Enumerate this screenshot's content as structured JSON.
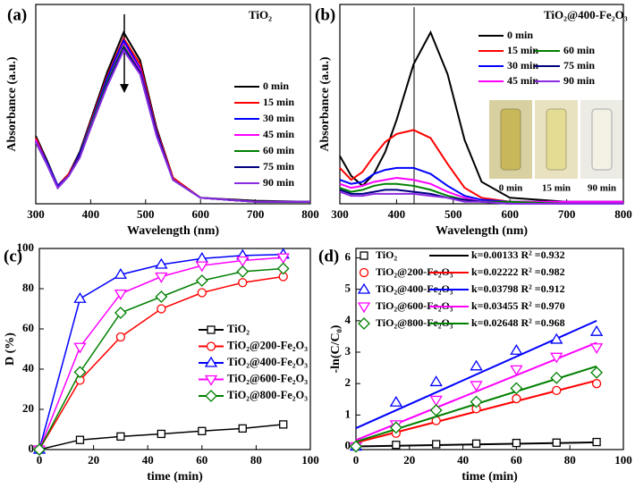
{
  "chart_data": [
    {
      "type": "line",
      "panel_label": "(a)",
      "annotation": "TiO₂",
      "x_label": "Wavelength (nm)",
      "y_label": "Absorbance (a.u.)",
      "x": [
        300,
        320,
        340,
        360,
        380,
        400,
        430,
        460,
        490,
        520,
        550,
        600,
        700,
        800
      ],
      "xlim": [
        300,
        800
      ],
      "xticks": [
        300,
        400,
        500,
        600,
        700,
        800
      ],
      "ylim": [
        0,
        1
      ],
      "series": [
        {
          "name": "0 min",
          "color": "#000000",
          "values": [
            0.34,
            0.22,
            0.09,
            0.15,
            0.26,
            0.42,
            0.66,
            0.86,
            0.72,
            0.38,
            0.13,
            0.03,
            0.015,
            0.01
          ]
        },
        {
          "name": "15 min",
          "color": "#ff0000",
          "values": [
            0.33,
            0.21,
            0.09,
            0.15,
            0.25,
            0.41,
            0.64,
            0.83,
            0.7,
            0.37,
            0.13,
            0.03,
            0.01,
            0.01
          ]
        },
        {
          "name": "30 min",
          "color": "#0000ff",
          "values": [
            0.32,
            0.21,
            0.09,
            0.14,
            0.25,
            0.4,
            0.63,
            0.82,
            0.68,
            0.36,
            0.12,
            0.03,
            0.01,
            0.01
          ]
        },
        {
          "name": "45 min",
          "color": "#ff00ff",
          "values": [
            0.32,
            0.2,
            0.08,
            0.14,
            0.24,
            0.39,
            0.61,
            0.8,
            0.67,
            0.35,
            0.12,
            0.03,
            0.01,
            0.01
          ]
        },
        {
          "name": "60 min",
          "color": "#008000",
          "values": [
            0.31,
            0.2,
            0.08,
            0.14,
            0.24,
            0.39,
            0.61,
            0.79,
            0.66,
            0.35,
            0.12,
            0.03,
            0.01,
            0.01
          ]
        },
        {
          "name": "75 min",
          "color": "#000080",
          "values": [
            0.31,
            0.2,
            0.08,
            0.14,
            0.24,
            0.38,
            0.6,
            0.78,
            0.66,
            0.35,
            0.12,
            0.03,
            0.01,
            0.01
          ]
        },
        {
          "name": "90 min",
          "color": "#8a2be2",
          "values": [
            0.31,
            0.2,
            0.08,
            0.14,
            0.23,
            0.38,
            0.59,
            0.77,
            0.65,
            0.34,
            0.12,
            0.03,
            0.01,
            0.01
          ]
        }
      ]
    },
    {
      "type": "line",
      "panel_label": "(b)",
      "annotation": "TiO₂@400-Fe₂O₃",
      "x_label": "Wavelength (nm)",
      "y_label": "Absorbance (a.u.)",
      "photo_labels": [
        "0 min",
        "15 min",
        "90 min"
      ],
      "x": [
        300,
        320,
        340,
        360,
        380,
        400,
        430,
        460,
        490,
        520,
        550,
        600,
        700,
        800
      ],
      "xlim": [
        300,
        800
      ],
      "xticks": [
        300,
        400,
        500,
        600,
        700,
        800
      ],
      "ylim": [
        0,
        1
      ],
      "series": [
        {
          "name": "0 min",
          "color": "#000000",
          "values": [
            0.24,
            0.14,
            0.09,
            0.15,
            0.26,
            0.42,
            0.7,
            0.86,
            0.65,
            0.32,
            0.11,
            0.03,
            0.01,
            0.01
          ]
        },
        {
          "name": "15 min",
          "color": "#ff0000",
          "values": [
            0.18,
            0.12,
            0.16,
            0.24,
            0.31,
            0.35,
            0.37,
            0.33,
            0.2,
            0.08,
            0.03,
            0.01,
            0.01,
            0.01
          ]
        },
        {
          "name": "30 min",
          "color": "#0000ff",
          "values": [
            0.12,
            0.1,
            0.11,
            0.15,
            0.17,
            0.18,
            0.18,
            0.15,
            0.09,
            0.04,
            0.02,
            0.01,
            0.01,
            0.01
          ]
        },
        {
          "name": "45 min",
          "color": "#ff00ff",
          "values": [
            0.1,
            0.08,
            0.09,
            0.11,
            0.12,
            0.13,
            0.12,
            0.1,
            0.06,
            0.03,
            0.01,
            0.01,
            0.01,
            0.01
          ]
        },
        {
          "name": "60 min",
          "color": "#008000",
          "values": [
            0.08,
            0.06,
            0.07,
            0.09,
            0.1,
            0.1,
            0.09,
            0.07,
            0.04,
            0.02,
            0.01,
            0.01,
            0,
            0
          ]
        },
        {
          "name": "75 min",
          "color": "#000080",
          "values": [
            0.07,
            0.05,
            0.05,
            0.06,
            0.07,
            0.07,
            0.06,
            0.05,
            0.03,
            0.02,
            0.01,
            0,
            0,
            0
          ]
        },
        {
          "name": "90 min",
          "color": "#8a2be2",
          "values": [
            0.06,
            0.04,
            0.04,
            0.05,
            0.05,
            0.05,
            0.05,
            0.04,
            0.03,
            0.01,
            0.01,
            0,
            0,
            0
          ]
        }
      ]
    },
    {
      "type": "line",
      "panel_label": "(c)",
      "x_label": "time (min)",
      "y_label": "D (%)",
      "x": [
        0,
        15,
        30,
        45,
        60,
        75,
        90
      ],
      "xlim": [
        0,
        100
      ],
      "xticks": [
        0,
        20,
        40,
        60,
        80,
        100
      ],
      "ylim": [
        0,
        100
      ],
      "yticks": [
        0,
        20,
        40,
        60,
        80,
        100
      ],
      "series": [
        {
          "name": "TiO₂",
          "color": "#000000",
          "marker": "square",
          "values": [
            0,
            4.8,
            6.5,
            7.8,
            9.2,
            10.5,
            12.5
          ]
        },
        {
          "name": "TiO₂@200-Fe₂O₃",
          "color": "#ff0000",
          "marker": "circle",
          "values": [
            0,
            34.5,
            56,
            70,
            78,
            83,
            86
          ]
        },
        {
          "name": "TiO₂@400-Fe₂O₃",
          "color": "#0000ff",
          "marker": "triangle-up",
          "values": [
            0,
            75,
            87,
            92,
            95,
            96.5,
            97
          ]
        },
        {
          "name": "TiO₂@600-Fe₂O₃",
          "color": "#ff00ff",
          "marker": "triangle-down",
          "values": [
            0,
            51,
            77.5,
            86,
            91.5,
            94,
            95.5
          ]
        },
        {
          "name": "TiO₂@800-Fe₂O₃",
          "color": "#008000",
          "marker": "diamond",
          "values": [
            0,
            38.5,
            68,
            76,
            84,
            88.5,
            90
          ]
        }
      ]
    },
    {
      "type": "scatter",
      "panel_label": "(d)",
      "x_label": "time (min)",
      "y_label": "-ln(C/C₀)",
      "x": [
        0,
        15,
        30,
        45,
        60,
        75,
        90
      ],
      "fit_x": [
        0,
        90
      ],
      "xlim": [
        0,
        100
      ],
      "xticks": [
        0,
        20,
        40,
        60,
        80,
        100
      ],
      "ylim": [
        -0.1,
        6.3
      ],
      "yticks": [
        0,
        1,
        2,
        3,
        4,
        5,
        6
      ],
      "series": [
        {
          "name": "TiO₂",
          "color": "#000000",
          "marker": "square",
          "fit_label": "k=0.00133  R² =0.932",
          "fit": [
            0,
            0.13
          ],
          "values": [
            0,
            0.05,
            0.07,
            0.09,
            0.11,
            0.12,
            0.14
          ]
        },
        {
          "name": "TiO₂@200-Fe₂O₃",
          "color": "#ff0000",
          "marker": "circle",
          "fit_label": "k=0.02222  R² =0.982",
          "fit": [
            0.12,
            2.1
          ],
          "values": [
            0,
            0.42,
            0.82,
            1.2,
            1.52,
            1.78,
            2.0
          ]
        },
        {
          "name": "TiO₂@400-Fe₂O₃",
          "color": "#0000ff",
          "marker": "triangle-up",
          "fit_label": "k=0.03798  R² =0.912",
          "fit": [
            0.58,
            4.0
          ],
          "values": [
            0,
            1.4,
            2.05,
            2.55,
            3.05,
            3.4,
            3.65
          ]
        },
        {
          "name": "TiO₂@600-Fe₂O₃",
          "color": "#ff00ff",
          "marker": "triangle-down",
          "fit_label": "k=0.03455  R² =0.970",
          "fit": [
            0.2,
            3.3
          ],
          "values": [
            0,
            0.7,
            1.48,
            1.95,
            2.45,
            2.85,
            3.15
          ]
        },
        {
          "name": "TiO₂@800-Fe₂O₃",
          "color": "#008000",
          "marker": "diamond",
          "fit_label": "k=0.02648  R² =0.968",
          "fit": [
            0.15,
            2.55
          ],
          "values": [
            0,
            0.6,
            1.15,
            1.42,
            1.85,
            2.18,
            2.35
          ]
        }
      ]
    }
  ]
}
